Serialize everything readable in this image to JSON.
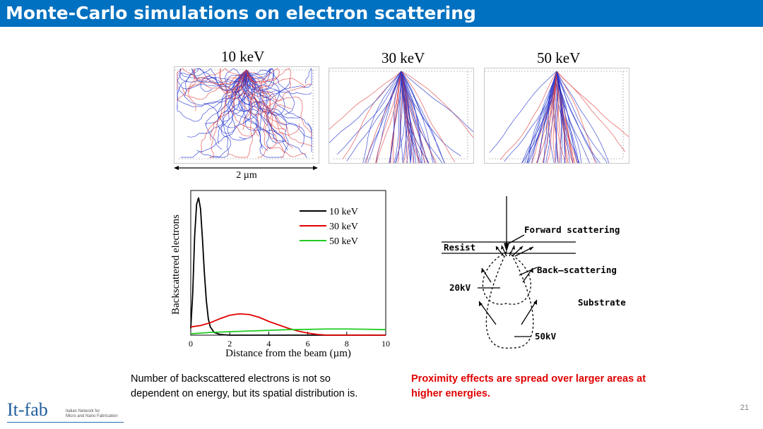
{
  "slide": {
    "title": "Monte-Carlo simulations on electron scattering",
    "page_number": "21"
  },
  "sim_panels": [
    {
      "label": "10 keV"
    },
    {
      "label": "30 keV"
    },
    {
      "label": "50 keV"
    }
  ],
  "scale_bar": {
    "label": "2 µm"
  },
  "chart_data": {
    "type": "line",
    "xlabel": "Distance from the beam (µm)",
    "ylabel": "Backscattered electrons",
    "xlim": [
      0,
      10
    ],
    "x_ticks": [
      "0",
      "2",
      "4",
      "6",
      "8",
      "10"
    ],
    "legend_position": "top-right",
    "grid": false,
    "series": [
      {
        "name": "10 keV",
        "color": "#000000",
        "x": [
          0,
          0.1,
          0.2,
          0.3,
          0.4,
          0.5,
          0.6,
          0.7,
          0.8,
          0.9,
          1.0,
          1.2,
          1.5,
          2.0,
          3.0,
          10
        ],
        "y": [
          0.05,
          0.3,
          0.72,
          0.95,
          1.0,
          0.92,
          0.7,
          0.45,
          0.25,
          0.12,
          0.06,
          0.02,
          0.005,
          0,
          0,
          0
        ]
      },
      {
        "name": "30 keV",
        "color": "#e00000",
        "x": [
          0,
          0.5,
          1,
          1.5,
          2,
          2.5,
          3,
          3.5,
          4,
          4.5,
          5,
          5.5,
          6,
          6.5,
          7,
          10
        ],
        "y": [
          0.06,
          0.07,
          0.09,
          0.12,
          0.145,
          0.155,
          0.15,
          0.13,
          0.1,
          0.075,
          0.05,
          0.03,
          0.015,
          0.005,
          0,
          0
        ]
      },
      {
        "name": "50 keV",
        "color": "#22cc22",
        "x": [
          0,
          1,
          2,
          3,
          4,
          5,
          6,
          7,
          8,
          9,
          10
        ],
        "y": [
          0.01,
          0.02,
          0.025,
          0.03,
          0.035,
          0.04,
          0.042,
          0.045,
          0.045,
          0.043,
          0.04
        ]
      }
    ]
  },
  "diagram": {
    "forward": "Forward scattering",
    "resist": "Resist",
    "back": "Back–scattering",
    "kv20": "20kV",
    "substrate": "Substrate",
    "kv50": "50kV"
  },
  "captions": {
    "left_line1": "Number of backscattered electrons is not so",
    "left_line2": "dependent on energy, but its spatial distribution is.",
    "right_line1": "Proximity effects are spread over larger areas at",
    "right_line2": "higher energies."
  },
  "logo": {
    "name": "It-fab",
    "sub_line1": "Italian Network for",
    "sub_line2": "Micro and Nano Fabrication"
  },
  "colors": {
    "title_bar": "#0070c0",
    "primary_trajectory": "#2233cc",
    "secondary_trajectory": "#e04040"
  }
}
